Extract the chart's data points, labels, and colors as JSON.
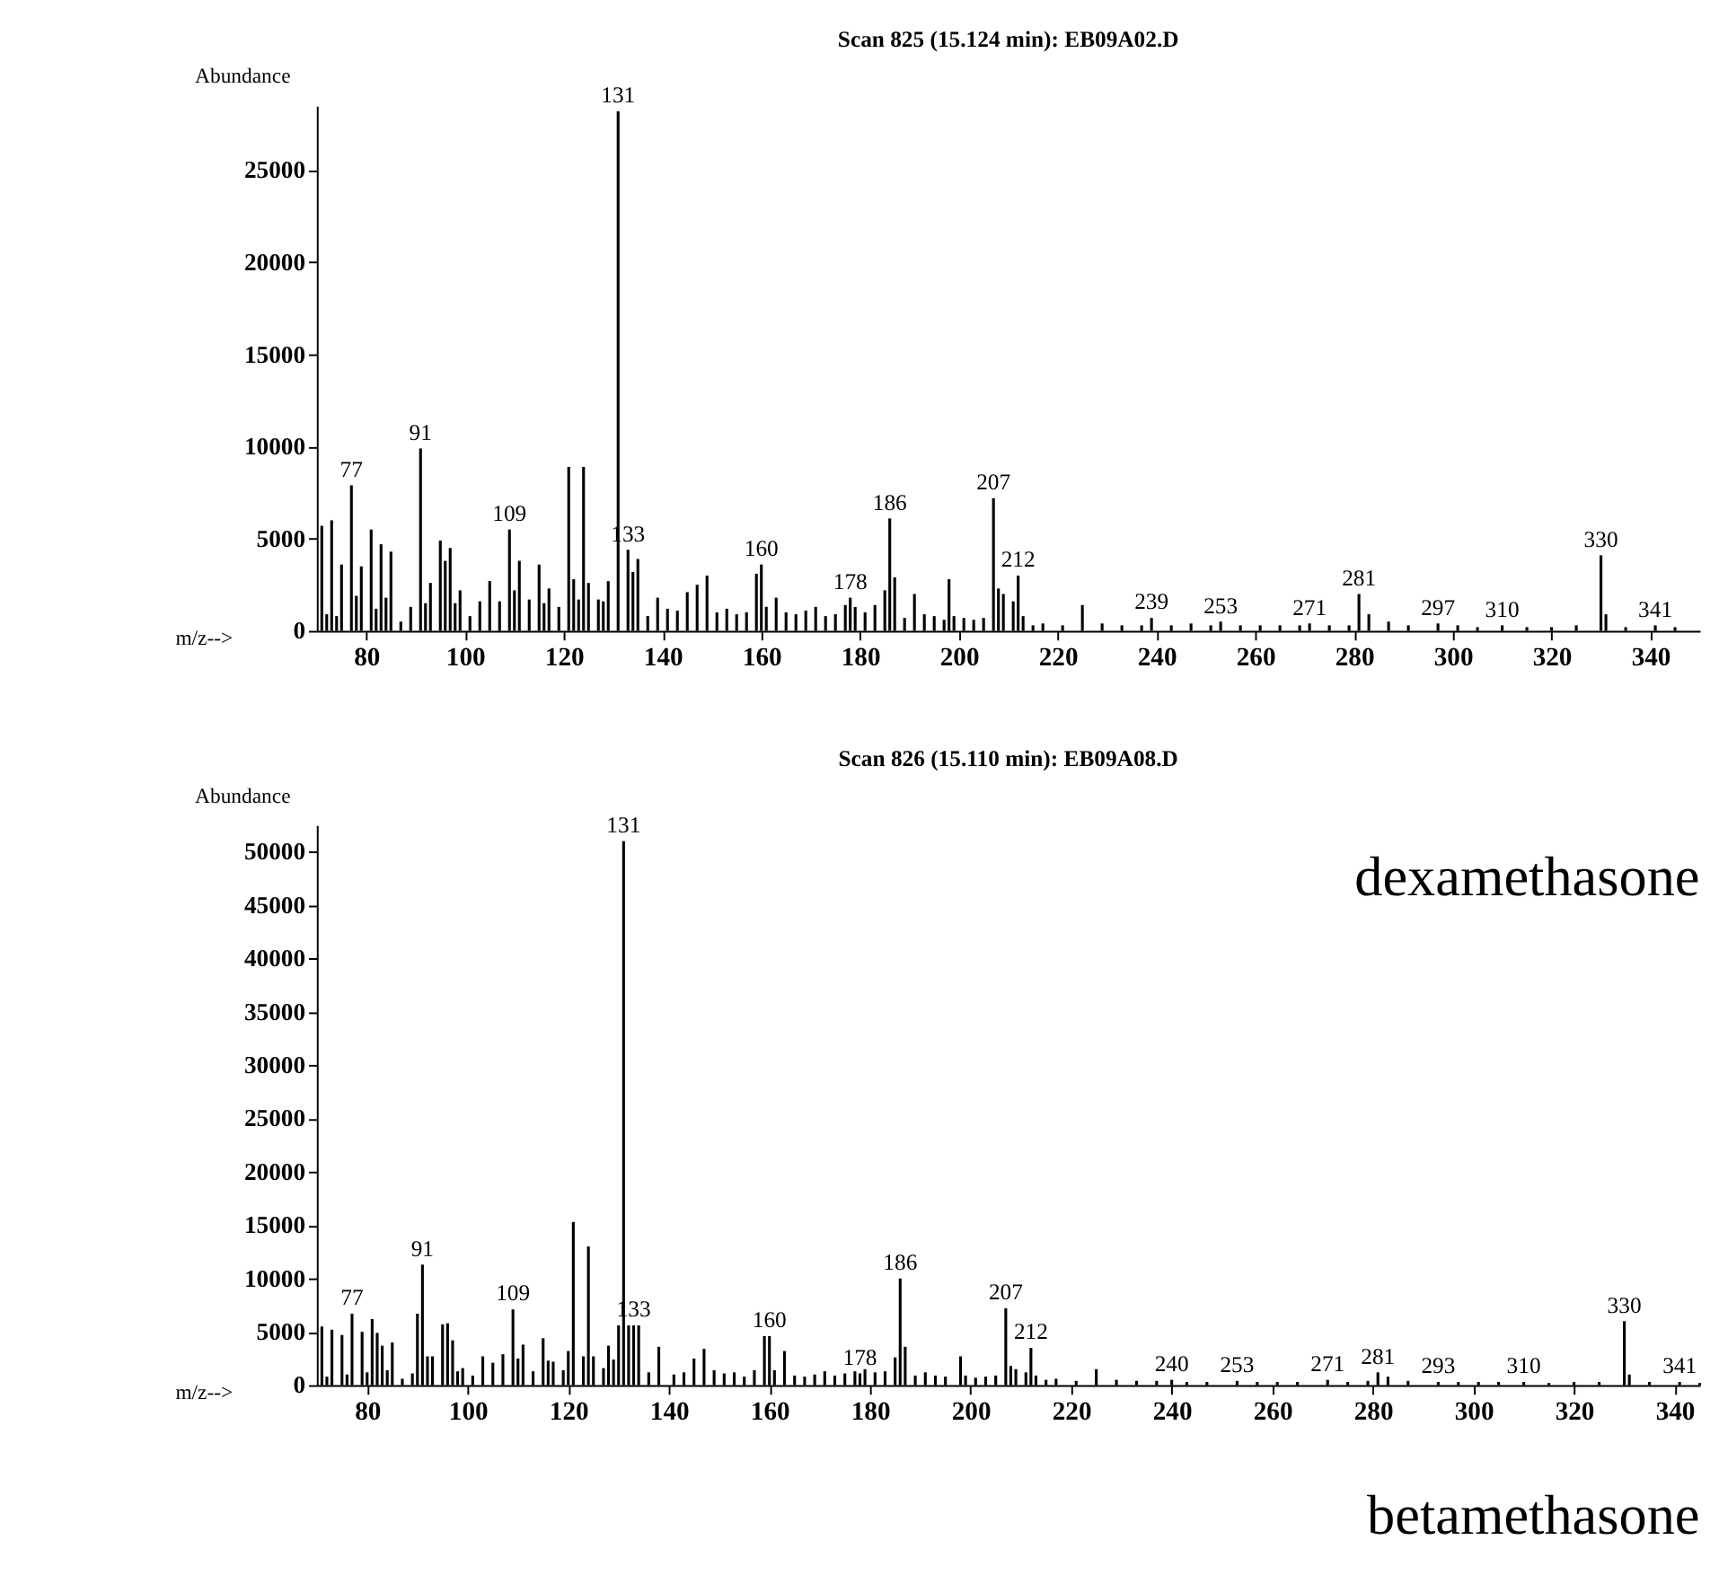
{
  "chart_data": [
    {
      "type": "bar",
      "title": "Scan 825 (15.124 min): EB09A02.D",
      "xlabel": "m/z-->",
      "ylabel": "Abundance",
      "color": "#000000",
      "grid": false,
      "xlim": [
        70,
        350
      ],
      "xticks": [
        80,
        100,
        120,
        140,
        160,
        180,
        200,
        220,
        240,
        260,
        280,
        300,
        320,
        340
      ],
      "ylim": [
        0,
        28500
      ],
      "yticks": [
        0,
        5000,
        10000,
        15000,
        20000,
        25000
      ],
      "x": [
        71,
        72,
        73,
        74,
        75,
        77,
        78,
        79,
        81,
        82,
        83,
        84,
        85,
        87,
        89,
        91,
        92,
        93,
        95,
        96,
        97,
        98,
        99,
        101,
        103,
        105,
        107,
        109,
        110,
        111,
        113,
        115,
        116,
        117,
        119,
        121,
        122,
        123,
        124,
        125,
        127,
        128,
        129,
        131,
        133,
        134,
        135,
        137,
        139,
        141,
        143,
        145,
        147,
        149,
        151,
        153,
        155,
        157,
        159,
        160,
        161,
        163,
        165,
        167,
        169,
        171,
        173,
        175,
        177,
        178,
        179,
        181,
        183,
        185,
        186,
        187,
        189,
        191,
        193,
        195,
        197,
        198,
        199,
        201,
        203,
        205,
        207,
        208,
        209,
        211,
        212,
        213,
        215,
        217,
        221,
        225,
        229,
        233,
        237,
        239,
        243,
        247,
        251,
        253,
        257,
        261,
        265,
        269,
        271,
        275,
        279,
        281,
        283,
        287,
        291,
        297,
        301,
        305,
        310,
        315,
        320,
        325,
        330,
        331,
        335,
        341,
        345
      ],
      "values": [
        5700,
        900,
        6000,
        800,
        3600,
        7900,
        1900,
        3500,
        5500,
        1200,
        4700,
        1800,
        4300,
        500,
        1300,
        9900,
        1500,
        2600,
        4900,
        3800,
        4500,
        1500,
        2200,
        800,
        1600,
        2700,
        1600,
        5500,
        2200,
        3800,
        1700,
        3600,
        1500,
        2300,
        1300,
        8900,
        2800,
        1700,
        8900,
        2600,
        1700,
        1600,
        2700,
        28200,
        4400,
        3200,
        3900,
        800,
        1800,
        1200,
        1100,
        2100,
        2500,
        3000,
        1000,
        1200,
        900,
        1000,
        3100,
        3600,
        1300,
        1800,
        1000,
        900,
        1100,
        1300,
        800,
        900,
        1400,
        1800,
        1300,
        1000,
        1400,
        2200,
        6100,
        2900,
        700,
        2000,
        900,
        800,
        600,
        2800,
        800,
        700,
        600,
        700,
        7200,
        2300,
        2000,
        1600,
        3000,
        800,
        300,
        400,
        300,
        1400,
        400,
        300,
        300,
        700,
        300,
        400,
        300,
        500,
        300,
        300,
        300,
        300,
        400,
        300,
        300,
        2000,
        900,
        500,
        300,
        400,
        300,
        200,
        300,
        200,
        200,
        300,
        4100,
        900,
        200,
        300,
        200
      ],
      "annotations": [
        {
          "text": "77",
          "x": 77,
          "y": 7900
        },
        {
          "text": "91",
          "x": 91,
          "y": 9900
        },
        {
          "text": "109",
          "x": 109,
          "y": 5500
        },
        {
          "text": "131",
          "x": 131,
          "y": 28200
        },
        {
          "text": "133",
          "x": 133,
          "y": 4400
        },
        {
          "text": "160",
          "x": 160,
          "y": 3600
        },
        {
          "text": "178",
          "x": 178,
          "y": 1800
        },
        {
          "text": "186",
          "x": 186,
          "y": 6100
        },
        {
          "text": "207",
          "x": 207,
          "y": 7200
        },
        {
          "text": "212",
          "x": 212,
          "y": 3000
        },
        {
          "text": "239",
          "x": 239,
          "y": 700
        },
        {
          "text": "253",
          "x": 253,
          "y": 500
        },
        {
          "text": "271",
          "x": 271,
          "y": 400
        },
        {
          "text": "281",
          "x": 281,
          "y": 2000
        },
        {
          "text": "297",
          "x": 297,
          "y": 400
        },
        {
          "text": "310",
          "x": 310,
          "y": 300
        },
        {
          "text": "330",
          "x": 330,
          "y": 4100
        },
        {
          "text": "341",
          "x": 341,
          "y": 300
        }
      ]
    },
    {
      "type": "bar",
      "title": "Scan 826 (15.110 min): EB09A08.D",
      "xlabel": "m/z-->",
      "ylabel": "Abundance",
      "color": "#000000",
      "grid": false,
      "xlim": [
        70,
        345
      ],
      "xticks": [
        80,
        100,
        120,
        140,
        160,
        180,
        200,
        220,
        240,
        260,
        280,
        300,
        320,
        340
      ],
      "ylim": [
        0,
        52500
      ],
      "yticks": [
        0,
        5000,
        10000,
        15000,
        20000,
        25000,
        30000,
        35000,
        40000,
        45000,
        50000
      ],
      "x": [
        71,
        72,
        73,
        75,
        76,
        77,
        79,
        80,
        81,
        82,
        83,
        84,
        85,
        87,
        89,
        90,
        91,
        92,
        93,
        95,
        96,
        97,
        98,
        99,
        101,
        103,
        105,
        107,
        109,
        110,
        111,
        113,
        115,
        116,
        117,
        119,
        120,
        121,
        123,
        124,
        125,
        127,
        128,
        129,
        130,
        131,
        132,
        133,
        134,
        136,
        138,
        141,
        143,
        145,
        147,
        149,
        151,
        153,
        155,
        157,
        159,
        160,
        161,
        163,
        165,
        167,
        169,
        171,
        173,
        175,
        177,
        178,
        179,
        181,
        183,
        185,
        186,
        187,
        189,
        191,
        193,
        195,
        198,
        199,
        201,
        203,
        205,
        207,
        208,
        209,
        211,
        212,
        213,
        215,
        217,
        221,
        225,
        229,
        233,
        237,
        240,
        243,
        247,
        253,
        257,
        261,
        265,
        271,
        275,
        279,
        281,
        283,
        287,
        293,
        297,
        301,
        305,
        310,
        315,
        320,
        325,
        330,
        331,
        335,
        341,
        345
      ],
      "values": [
        5500,
        800,
        5200,
        4700,
        1000,
        6700,
        5000,
        1200,
        6200,
        4900,
        3700,
        1400,
        4000,
        600,
        1100,
        6700,
        11300,
        2700,
        2700,
        5700,
        5800,
        4200,
        1300,
        1600,
        900,
        2700,
        2100,
        2900,
        7100,
        2500,
        3800,
        1300,
        4400,
        2300,
        2200,
        1400,
        3200,
        15300,
        2700,
        13000,
        2700,
        1600,
        3700,
        2400,
        5600,
        51000,
        5600,
        5600,
        5600,
        1200,
        3600,
        1000,
        1200,
        2500,
        3400,
        1400,
        1100,
        1200,
        800,
        1400,
        4600,
        4600,
        1400,
        3200,
        900,
        800,
        1000,
        1300,
        900,
        1100,
        1300,
        1100,
        1500,
        1200,
        1300,
        2600,
        10000,
        3600,
        900,
        1200,
        900,
        800,
        2700,
        900,
        700,
        800,
        900,
        7200,
        1800,
        1500,
        1200,
        3500,
        900,
        500,
        600,
        400,
        1500,
        500,
        400,
        400,
        500,
        300,
        300,
        400,
        300,
        300,
        300,
        500,
        300,
        400,
        1200,
        800,
        400,
        300,
        300,
        300,
        300,
        300,
        200,
        300,
        300,
        6000,
        1000,
        300,
        300,
        200
      ],
      "annotations": [
        {
          "text": "77",
          "x": 77,
          "y": 6700
        },
        {
          "text": "91",
          "x": 91,
          "y": 11300
        },
        {
          "text": "109",
          "x": 109,
          "y": 7100
        },
        {
          "text": "131",
          "x": 131,
          "y": 51000
        },
        {
          "text": "133",
          "x": 133,
          "y": 5600
        },
        {
          "text": "160",
          "x": 160,
          "y": 4600
        },
        {
          "text": "178",
          "x": 178,
          "y": 1100
        },
        {
          "text": "186",
          "x": 186,
          "y": 10000
        },
        {
          "text": "207",
          "x": 207,
          "y": 7200
        },
        {
          "text": "212",
          "x": 212,
          "y": 3500
        },
        {
          "text": "240",
          "x": 240,
          "y": 500
        },
        {
          "text": "253",
          "x": 253,
          "y": 400
        },
        {
          "text": "271",
          "x": 271,
          "y": 500
        },
        {
          "text": "281",
          "x": 281,
          "y": 1200
        },
        {
          "text": "293",
          "x": 293,
          "y": 300
        },
        {
          "text": "310",
          "x": 310,
          "y": 300
        },
        {
          "text": "330",
          "x": 330,
          "y": 6000
        },
        {
          "text": "341",
          "x": 341,
          "y": 300
        },
        "dexamethasone",
        "betamethasone"
      ]
    }
  ]
}
